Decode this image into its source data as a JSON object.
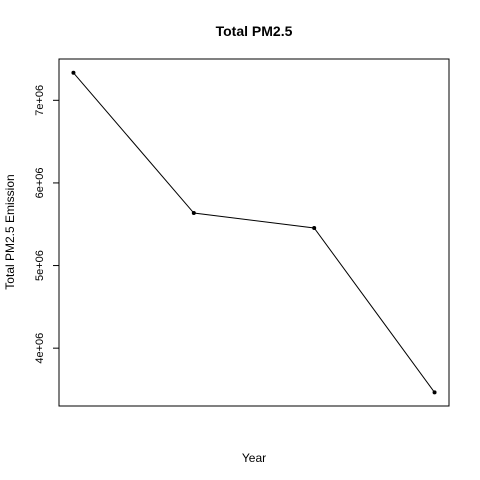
{
  "chart_data": {
    "type": "line",
    "title": "Total PM2.5",
    "xlabel": "Year",
    "ylabel": "Total PM2.5 Emission",
    "x_tick_labels_shown": false,
    "x": [
      1,
      2,
      3,
      4
    ],
    "series": [
      {
        "values": [
          7332967,
          5635780,
          5454703,
          3464206
        ]
      }
    ],
    "ylim": [
      3300000,
      7500000
    ],
    "y_ticks": [
      4000000,
      5000000,
      6000000,
      7000000
    ],
    "y_tick_labels": [
      "4e+06",
      "5e+06",
      "6e+06",
      "7e+06"
    ],
    "grid": false,
    "legend": "none",
    "colors": {
      "line": "#000000",
      "points": "#000000",
      "frame": "#000000"
    }
  }
}
